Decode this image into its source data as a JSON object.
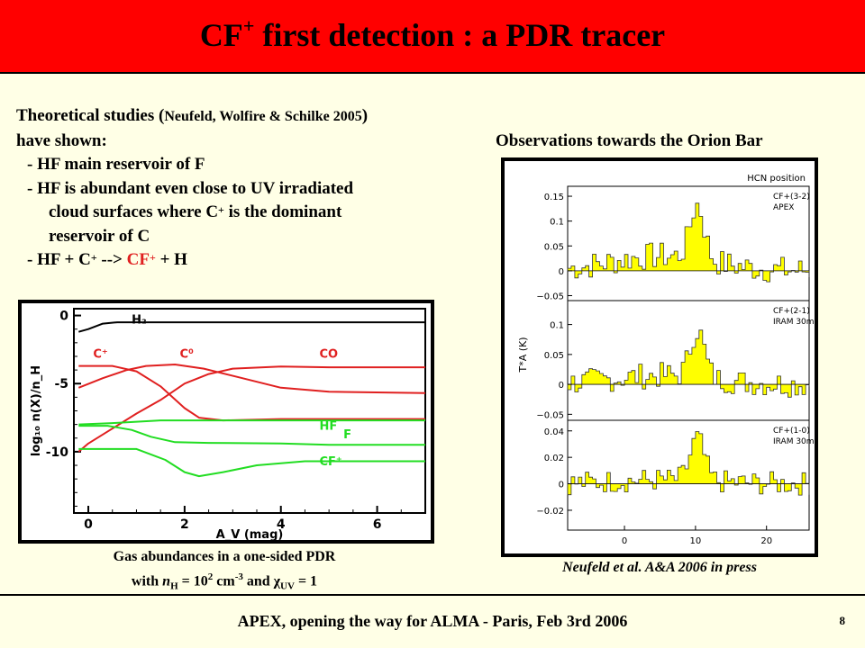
{
  "header": {
    "title_main": "CF",
    "title_sup": "+",
    "title_rest": " first detection : a PDR tracer"
  },
  "intro": {
    "l1a": "Theoretical studies (",
    "l1cite": "Neufeld, Wolfire & Schilke 2005",
    "l1b": ")",
    "l2": "have shown:",
    "l3": "- HF main reservoir of F",
    "l4": "- HF is abundant even close to UV irradiated",
    "l5a": "cloud surfaces where C",
    "l5sup": "+",
    "l5b": " is the dominant",
    "l6": "reservoir of C",
    "l7a": "- HF + C",
    "l7sup": "+",
    "l7b": " --> ",
    "l7cf": "CF",
    "l7cfsup": "+",
    "l7c": " + H"
  },
  "observations_title": "Observations towards the Orion Bar",
  "left_caption": {
    "line1": "Gas abundances in a one-sided PDR",
    "with": "with ",
    "nH": "n",
    "nHsub": "H",
    "eq1": " = 10",
    "pow": "2",
    "unit": " cm",
    "unitpow": "-3",
    "and": "  and ",
    "chi": "χ",
    "chisub": "UV",
    "eq2": " = 1"
  },
  "right_caption": "Neufeld et al. A&A 2006 in press",
  "footer": {
    "text": "APEX, opening the way for ALMA  -  Paris, Feb 3rd 2006",
    "page": "8"
  },
  "chart_data": [
    {
      "type": "line",
      "xlabel": "Av (mag)",
      "ylabel": "log10 n(X)/nH",
      "xlim": [
        -0.3,
        7
      ],
      "ylim": [
        -14.5,
        0.5
      ],
      "xticks": [
        "0",
        "2",
        "4",
        "6"
      ],
      "yticks": [
        "0",
        "-5",
        "-10"
      ],
      "colors": {
        "H2": "#000000",
        "carbon": "#e02020",
        "fluorine": "#22dd22"
      },
      "series": [
        {
          "name": "H2",
          "color": "#000000",
          "points": [
            [
              -0.2,
              -1.2
            ],
            [
              0,
              -1.0
            ],
            [
              0.3,
              -0.6
            ],
            [
              0.6,
              -0.5
            ],
            [
              1.5,
              -0.5
            ],
            [
              4,
              -0.5
            ],
            [
              7,
              -0.5
            ]
          ]
        },
        {
          "name": "C+",
          "color": "#e02020",
          "points": [
            [
              -0.2,
              -3.7
            ],
            [
              0.5,
              -3.7
            ],
            [
              1,
              -4.1
            ],
            [
              1.5,
              -5.2
            ],
            [
              2,
              -6.8
            ],
            [
              2.3,
              -7.5
            ],
            [
              2.8,
              -7.7
            ],
            [
              4,
              -7.6
            ],
            [
              5,
              -7.6
            ],
            [
              7,
              -7.6
            ]
          ]
        },
        {
          "name": "C0",
          "color": "#e02020",
          "points": [
            [
              -0.2,
              -5.3
            ],
            [
              0.3,
              -4.6
            ],
            [
              0.8,
              -4.0
            ],
            [
              1.2,
              -3.7
            ],
            [
              1.8,
              -3.6
            ],
            [
              2.4,
              -3.9
            ],
            [
              3.2,
              -4.6
            ],
            [
              4,
              -5.3
            ],
            [
              5,
              -5.6
            ],
            [
              7,
              -5.7
            ]
          ]
        },
        {
          "name": "CO",
          "color": "#e02020",
          "points": [
            [
              -0.2,
              -10
            ],
            [
              0,
              -9.4
            ],
            [
              0.5,
              -8.3
            ],
            [
              1,
              -7.2
            ],
            [
              1.5,
              -6.2
            ],
            [
              2,
              -5.0
            ],
            [
              2.5,
              -4.3
            ],
            [
              3,
              -3.9
            ],
            [
              4,
              -3.75
            ],
            [
              5,
              -3.8
            ],
            [
              7,
              -3.8
            ]
          ]
        },
        {
          "name": "HF",
          "color": "#22dd22",
          "points": [
            [
              -0.2,
              -8.0
            ],
            [
              0.5,
              -7.9
            ],
            [
              1.5,
              -7.7
            ],
            [
              3,
              -7.7
            ],
            [
              5,
              -7.7
            ],
            [
              7,
              -7.7
            ]
          ]
        },
        {
          "name": "F",
          "color": "#22dd22",
          "points": [
            [
              -0.2,
              -8.1
            ],
            [
              0.4,
              -8.1
            ],
            [
              0.9,
              -8.4
            ],
            [
              1.3,
              -8.9
            ],
            [
              1.8,
              -9.3
            ],
            [
              2.5,
              -9.35
            ],
            [
              4,
              -9.4
            ],
            [
              5,
              -9.5
            ],
            [
              7,
              -9.5
            ]
          ]
        },
        {
          "name": "CF+",
          "color": "#22dd22",
          "points": [
            [
              -0.2,
              -9.8
            ],
            [
              0.3,
              -9.8
            ],
            [
              1,
              -9.8
            ],
            [
              1.6,
              -10.6
            ],
            [
              2.0,
              -11.5
            ],
            [
              2.3,
              -11.8
            ],
            [
              2.8,
              -11.5
            ],
            [
              3.5,
              -11.0
            ],
            [
              4.5,
              -10.7
            ],
            [
              7,
              -10.7
            ]
          ]
        }
      ],
      "labels": [
        {
          "text": "H₂",
          "at": [
            0.9,
            -0.6
          ],
          "color": "#000000"
        },
        {
          "text": "C⁺",
          "at": [
            0.1,
            -3.1
          ],
          "color": "#e02020"
        },
        {
          "text": "C⁰",
          "at": [
            1.9,
            -3.1
          ],
          "color": "#e02020"
        },
        {
          "text": "CO",
          "at": [
            4.8,
            -3.1
          ],
          "color": "#e02020"
        },
        {
          "text": "HF",
          "at": [
            4.8,
            -8.4
          ],
          "color": "#22dd22"
        },
        {
          "text": "F",
          "at": [
            5.3,
            -9.0
          ],
          "color": "#22dd22"
        },
        {
          "text": "CF⁺",
          "at": [
            4.8,
            -11.0
          ],
          "color": "#22dd22"
        }
      ]
    },
    {
      "type": "area",
      "title": "HCN position",
      "xlabel": "",
      "ylabel": "T*A (K)",
      "xlim": [
        -8,
        26
      ],
      "xticks": [
        "0",
        "10",
        "20"
      ],
      "fill_color": "#ffff00",
      "panels": [
        {
          "name": "CF+(3-2)",
          "telescope": "APEX",
          "ylim": [
            -0.06,
            0.17
          ],
          "yticks": [
            "0.15",
            "0.1",
            "0.05",
            "0",
            "−0.05"
          ],
          "peak": 0.11,
          "noise": 0.028,
          "offset": 0.03
        },
        {
          "name": "CF+(2-1)",
          "telescope": "IRAM 30m",
          "ylim": [
            -0.06,
            0.14
          ],
          "yticks": [
            "0.1",
            "0.05",
            "0",
            "−0.05"
          ],
          "peak": 0.08,
          "noise": 0.022,
          "offset": 0.015
        },
        {
          "name": "CF+(1-0)",
          "telescope": "IRAM 30m",
          "ylim": [
            -0.035,
            0.048
          ],
          "yticks": [
            "0.04",
            "0.02",
            "0",
            "−0.02"
          ],
          "peak": 0.032,
          "noise": 0.009,
          "offset": 0.003
        }
      ]
    }
  ]
}
